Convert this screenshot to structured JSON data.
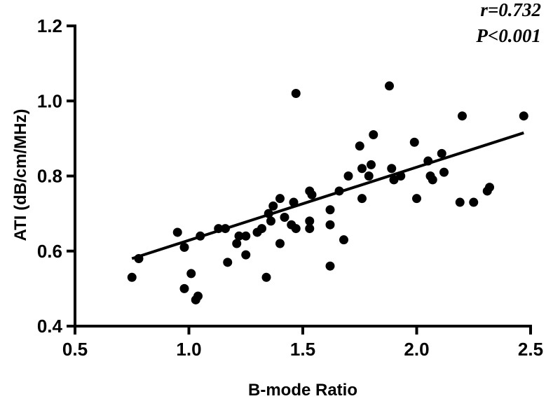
{
  "chart_data": {
    "type": "scatter",
    "title": "",
    "xlabel": "B-mode Ratio",
    "ylabel": "ATI (dB/cm/MHz)",
    "xlim": [
      0.5,
      2.5
    ],
    "ylim": [
      0.4,
      1.2
    ],
    "xticks": [
      0.5,
      1.0,
      1.5,
      2.0,
      2.5
    ],
    "xtick_labels": [
      "0.5",
      "1.0",
      "1.5",
      "2.0",
      "2.5"
    ],
    "yticks": [
      0.4,
      0.6,
      0.8,
      1.0,
      1.2
    ],
    "ytick_labels": [
      "0.4",
      "0.6",
      "0.8",
      "1.0",
      "1.2"
    ],
    "grid": false,
    "annotations": [
      "r=0.732",
      "P<0.001"
    ],
    "color": "#000000",
    "fit_line": {
      "x": [
        0.75,
        2.47
      ],
      "y": [
        0.58,
        0.915
      ]
    },
    "points": [
      [
        0.75,
        0.53
      ],
      [
        0.78,
        0.58
      ],
      [
        0.95,
        0.65
      ],
      [
        0.98,
        0.61
      ],
      [
        0.98,
        0.5
      ],
      [
        1.01,
        0.54
      ],
      [
        1.03,
        0.47
      ],
      [
        1.04,
        0.48
      ],
      [
        1.05,
        0.64
      ],
      [
        1.13,
        0.66
      ],
      [
        1.16,
        0.66
      ],
      [
        1.17,
        0.57
      ],
      [
        1.21,
        0.62
      ],
      [
        1.22,
        0.64
      ],
      [
        1.25,
        0.64
      ],
      [
        1.25,
        0.59
      ],
      [
        1.3,
        0.65
      ],
      [
        1.32,
        0.66
      ],
      [
        1.34,
        0.53
      ],
      [
        1.35,
        0.7
      ],
      [
        1.36,
        0.68
      ],
      [
        1.37,
        0.72
      ],
      [
        1.4,
        0.62
      ],
      [
        1.4,
        0.74
      ],
      [
        1.42,
        0.69
      ],
      [
        1.45,
        0.67
      ],
      [
        1.46,
        0.73
      ],
      [
        1.47,
        0.66
      ],
      [
        1.47,
        1.02
      ],
      [
        1.53,
        0.68
      ],
      [
        1.53,
        0.66
      ],
      [
        1.53,
        0.76
      ],
      [
        1.54,
        0.75
      ],
      [
        1.62,
        0.71
      ],
      [
        1.62,
        0.67
      ],
      [
        1.62,
        0.56
      ],
      [
        1.66,
        0.76
      ],
      [
        1.68,
        0.63
      ],
      [
        1.7,
        0.8
      ],
      [
        1.75,
        0.88
      ],
      [
        1.76,
        0.82
      ],
      [
        1.76,
        0.74
      ],
      [
        1.79,
        0.8
      ],
      [
        1.8,
        0.83
      ],
      [
        1.81,
        0.91
      ],
      [
        1.88,
        1.04
      ],
      [
        1.89,
        0.82
      ],
      [
        1.9,
        0.79
      ],
      [
        1.93,
        0.8
      ],
      [
        1.99,
        0.89
      ],
      [
        2.0,
        0.74
      ],
      [
        2.05,
        0.84
      ],
      [
        2.06,
        0.8
      ],
      [
        2.07,
        0.79
      ],
      [
        2.11,
        0.86
      ],
      [
        2.12,
        0.81
      ],
      [
        2.19,
        0.73
      ],
      [
        2.2,
        0.96
      ],
      [
        2.25,
        0.73
      ],
      [
        2.31,
        0.76
      ],
      [
        2.32,
        0.77
      ],
      [
        2.47,
        0.96
      ]
    ]
  }
}
